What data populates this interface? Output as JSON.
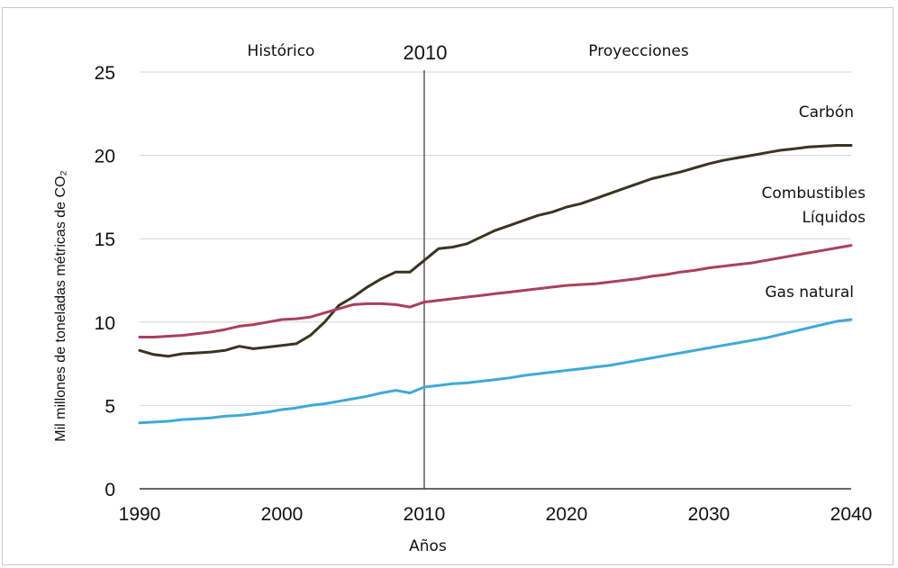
{
  "chart_data": {
    "type": "line",
    "title": "",
    "xlabel": "Años",
    "ylabel": "Mil millones de toneladas métricas de CO₂",
    "xlim": [
      1990,
      2040
    ],
    "ylim": [
      0,
      25
    ],
    "x_ticks": [
      "1990",
      "2000",
      "2010",
      "2020",
      "2030",
      "2040"
    ],
    "y_ticks": [
      "0",
      "5",
      "10",
      "15",
      "20",
      "25"
    ],
    "grid": "horizontal",
    "annotations": {
      "historic": "Histórico",
      "divider_year": "2010",
      "projections": "Proyecciones"
    },
    "divider_x": 2010,
    "series": [
      {
        "name": "Carbón",
        "label_lines": [
          "Carbón"
        ],
        "color": "#3a3420",
        "x": [
          1990,
          1991,
          1992,
          1993,
          1994,
          1995,
          1996,
          1997,
          1998,
          1999,
          2000,
          2001,
          2002,
          2003,
          2004,
          2005,
          2006,
          2007,
          2008,
          2009,
          2010,
          2011,
          2012,
          2013,
          2014,
          2015,
          2016,
          2017,
          2018,
          2019,
          2020,
          2021,
          2022,
          2023,
          2024,
          2025,
          2026,
          2027,
          2028,
          2029,
          2030,
          2031,
          2032,
          2033,
          2034,
          2035,
          2036,
          2037,
          2038,
          2039,
          2040
        ],
        "y": [
          8.3,
          8.05,
          7.95,
          8.1,
          8.15,
          8.2,
          8.3,
          8.55,
          8.4,
          8.5,
          8.6,
          8.7,
          9.2,
          10.0,
          11.0,
          11.5,
          12.1,
          12.6,
          13.0,
          13.0,
          13.7,
          14.4,
          14.5,
          14.7,
          15.1,
          15.5,
          15.8,
          16.1,
          16.4,
          16.6,
          16.9,
          17.1,
          17.4,
          17.7,
          18.0,
          18.3,
          18.6,
          18.8,
          19.0,
          19.25,
          19.5,
          19.7,
          19.85,
          20.0,
          20.15,
          20.3,
          20.4,
          20.5,
          20.55,
          20.6,
          20.6
        ]
      },
      {
        "name": "Combustibles Líquidos",
        "label_lines": [
          "Combustibles",
          "Líquidos"
        ],
        "color": "#a8405e",
        "x": [
          1990,
          1991,
          1992,
          1993,
          1994,
          1995,
          1996,
          1997,
          1998,
          1999,
          2000,
          2001,
          2002,
          2003,
          2004,
          2005,
          2006,
          2007,
          2008,
          2009,
          2010,
          2011,
          2012,
          2013,
          2014,
          2015,
          2016,
          2017,
          2018,
          2019,
          2020,
          2021,
          2022,
          2023,
          2024,
          2025,
          2026,
          2027,
          2028,
          2029,
          2030,
          2031,
          2032,
          2033,
          2034,
          2035,
          2036,
          2037,
          2038,
          2039,
          2040
        ],
        "y": [
          9.1,
          9.1,
          9.15,
          9.2,
          9.3,
          9.4,
          9.55,
          9.75,
          9.85,
          10.0,
          10.15,
          10.2,
          10.3,
          10.55,
          10.8,
          11.05,
          11.1,
          11.1,
          11.05,
          10.9,
          11.2,
          11.3,
          11.4,
          11.5,
          11.6,
          11.7,
          11.8,
          11.9,
          12.0,
          12.1,
          12.2,
          12.25,
          12.3,
          12.4,
          12.5,
          12.6,
          12.75,
          12.85,
          13.0,
          13.1,
          13.25,
          13.35,
          13.45,
          13.55,
          13.7,
          13.85,
          14.0,
          14.15,
          14.3,
          14.45,
          14.6
        ]
      },
      {
        "name": "Gas natural",
        "label_lines": [
          "Gas natural"
        ],
        "color": "#3fa9d6",
        "x": [
          1990,
          1991,
          1992,
          1993,
          1994,
          1995,
          1996,
          1997,
          1998,
          1999,
          2000,
          2001,
          2002,
          2003,
          2004,
          2005,
          2006,
          2007,
          2008,
          2009,
          2010,
          2011,
          2012,
          2013,
          2014,
          2015,
          2016,
          2017,
          2018,
          2019,
          2020,
          2021,
          2022,
          2023,
          2024,
          2025,
          2026,
          2027,
          2028,
          2029,
          2030,
          2031,
          2032,
          2033,
          2034,
          2035,
          2036,
          2037,
          2038,
          2039,
          2040
        ],
        "y": [
          3.95,
          4.0,
          4.05,
          4.15,
          4.2,
          4.25,
          4.35,
          4.4,
          4.5,
          4.6,
          4.75,
          4.85,
          5.0,
          5.1,
          5.25,
          5.4,
          5.55,
          5.75,
          5.9,
          5.75,
          6.1,
          6.2,
          6.3,
          6.35,
          6.45,
          6.55,
          6.65,
          6.8,
          6.9,
          7.0,
          7.1,
          7.2,
          7.3,
          7.4,
          7.55,
          7.7,
          7.85,
          8.0,
          8.15,
          8.3,
          8.45,
          8.6,
          8.75,
          8.9,
          9.05,
          9.25,
          9.45,
          9.65,
          9.85,
          10.05,
          10.15
        ]
      }
    ]
  }
}
